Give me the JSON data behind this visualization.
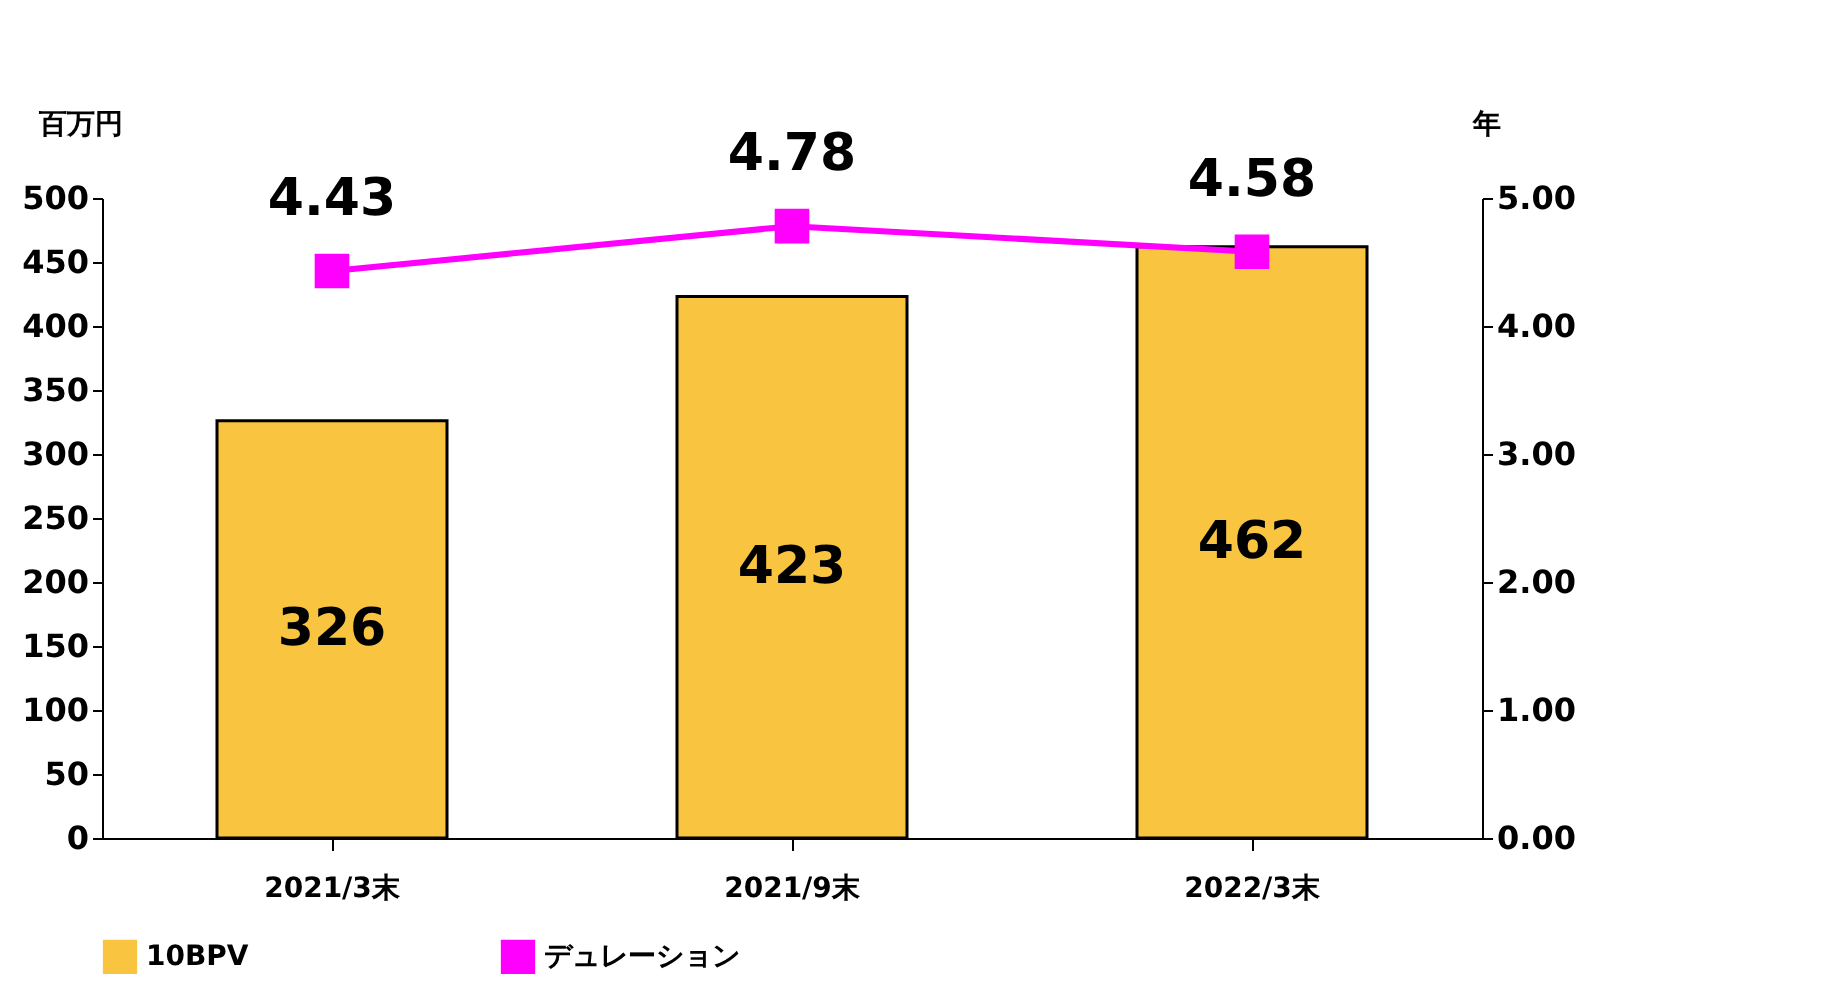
{
  "chart_data": {
    "type": "bar",
    "categories": [
      "2021/3末",
      "2021/9末",
      "2022/3末"
    ],
    "series": [
      {
        "name": "10BPV",
        "color": "#f9c440",
        "values": [
          326,
          423,
          462
        ]
      },
      {
        "name": "デュレーション",
        "type": "line",
        "axis": "y2",
        "color": "#ff00ff",
        "values": [
          4.43,
          4.78,
          4.58
        ]
      }
    ],
    "ylabel": "百万円",
    "y2label": "年",
    "ylim": [
      0,
      500
    ],
    "yticks": [
      0,
      50,
      100,
      150,
      200,
      250,
      300,
      350,
      400,
      450,
      500
    ],
    "y2lim": [
      0,
      5
    ],
    "y2ticks": [
      {
        "value": 0,
        "label": "0.00"
      },
      {
        "value": 1,
        "label": "1.00"
      },
      {
        "value": 2,
        "label": "2.00"
      },
      {
        "value": 3,
        "label": "3.00"
      },
      {
        "value": 4,
        "label": "4.00"
      },
      {
        "value": 5,
        "label": "5.00"
      }
    ],
    "data_labels": true,
    "grid": false,
    "legend": "bottom",
    "marker": "square",
    "line_style": "solid"
  }
}
